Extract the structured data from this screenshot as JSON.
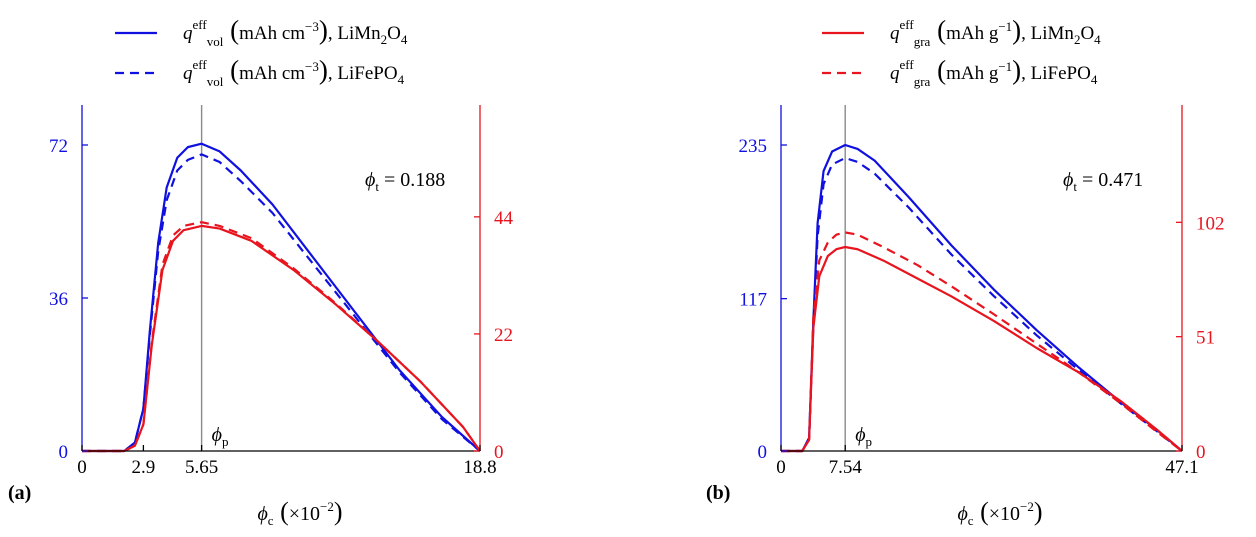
{
  "colors": {
    "blue": "#1010e0",
    "red": "#e8141e",
    "ref": "#8a8a8a",
    "axis": "#000000"
  },
  "chart_data": [
    {
      "type": "line",
      "panel_label": "(a)",
      "annotation": {
        "symbol": "ϕ",
        "sub": "t",
        "rest": " = 0.188"
      },
      "peak_label": {
        "symbol": "ϕ",
        "sub": "p"
      },
      "xlabel": {
        "symbol": "ϕ",
        "sub": "c",
        "unit": "×10",
        "exp": "−2"
      },
      "xlim": [
        0,
        18.8
      ],
      "xticks": [
        "0",
        "2.9",
        "5.65",
        "18.8"
      ],
      "xtick_values": [
        0,
        2.9,
        5.65,
        18.8
      ],
      "vline_x": 5.65,
      "y_left": {
        "lim": [
          0,
          72
        ],
        "ticks": [
          "0",
          "36",
          "72"
        ],
        "tick_values": [
          0,
          36,
          72
        ]
      },
      "y_right": {
        "lim": [
          0,
          57.5
        ],
        "ticks": [
          "0",
          "22",
          "44"
        ],
        "tick_values": [
          0,
          22,
          44
        ]
      },
      "legend": [
        {
          "symbol": "q",
          "sup": "eff",
          "sub": "vol",
          "unit": "mAh cm",
          "exp": "−3",
          "material": "LiMn",
          "m2": "2",
          "m3": "O",
          "m4": "4",
          "style": "solid"
        },
        {
          "symbol": "q",
          "sup": "eff",
          "sub": "vol",
          "unit": "mAh cm",
          "exp": "−3",
          "material": "LiFePO",
          "m2": "",
          "m3": "",
          "m4": "4",
          "style": "dashed"
        }
      ],
      "series": [
        {
          "axis": "left",
          "color": "blue",
          "dash": false,
          "x": [
            0,
            2.0,
            2.5,
            2.9,
            3.2,
            3.6,
            4.0,
            4.5,
            5.0,
            5.65,
            6.5,
            7.5,
            9,
            11,
            13,
            15,
            17,
            18.8
          ],
          "y": [
            0,
            0,
            2,
            10,
            28,
            49,
            62,
            69,
            71.5,
            72.3,
            70.5,
            66,
            58,
            45,
            32,
            19,
            8,
            0
          ]
        },
        {
          "axis": "left",
          "color": "blue",
          "dash": true,
          "x": [
            0,
            2.0,
            2.5,
            2.9,
            3.2,
            3.6,
            4.0,
            4.5,
            5.0,
            5.65,
            6.5,
            7.5,
            9,
            11,
            13,
            15,
            17,
            18.8
          ],
          "y": [
            0,
            0,
            2,
            10,
            27,
            47,
            59,
            66,
            68.5,
            69.8,
            68,
            63.5,
            56,
            43.5,
            31,
            18.5,
            7.5,
            0
          ]
        },
        {
          "axis": "right",
          "color": "red",
          "dash": false,
          "x": [
            0,
            2.0,
            2.5,
            2.9,
            3.3,
            3.8,
            4.3,
            4.8,
            5.65,
            6.5,
            8,
            10,
            12,
            14,
            16,
            18,
            18.8
          ],
          "y": [
            0,
            0,
            1,
            5,
            20,
            34,
            39.5,
            41.5,
            42.3,
            41.8,
            39.5,
            34,
            27.5,
            20.5,
            13,
            4.5,
            0
          ]
        },
        {
          "axis": "right",
          "color": "red",
          "dash": true,
          "x": [
            0,
            2.0,
            2.5,
            2.9,
            3.3,
            3.8,
            4.3,
            4.8,
            5.65,
            6.5,
            8,
            10,
            12,
            14,
            16,
            18,
            18.8
          ],
          "y": [
            0,
            0,
            1,
            5,
            20.5,
            35,
            40.5,
            42.3,
            43,
            42.3,
            40,
            34.3,
            27.7,
            20.5,
            13,
            4.5,
            0
          ]
        }
      ]
    },
    {
      "type": "line",
      "panel_label": "(b)",
      "annotation": {
        "symbol": "ϕ",
        "sub": "t",
        "rest": " = 0.471"
      },
      "peak_label": {
        "symbol": "ϕ",
        "sub": "p"
      },
      "xlabel": {
        "symbol": "ϕ",
        "sub": "c",
        "unit": "×10",
        "exp": "−2"
      },
      "xlim": [
        0,
        47.1
      ],
      "xticks": [
        "0",
        "7.54",
        "47.1"
      ],
      "xtick_values": [
        0,
        7.54,
        47.1
      ],
      "vline_x": 7.54,
      "y_left": {
        "lim": [
          0,
          235
        ],
        "ticks": [
          "0",
          "117",
          "235"
        ],
        "tick_values": [
          0,
          117,
          235
        ]
      },
      "y_right": {
        "lim": [
          0,
          136.5
        ],
        "ticks": [
          "0",
          "51",
          "102"
        ],
        "tick_values": [
          0,
          51,
          102
        ]
      },
      "legend": [
        {
          "symbol": "q",
          "sup": "eff",
          "sub": "gra",
          "unit": "mAh g",
          "exp": "−1",
          "material": "LiMn",
          "m2": "2",
          "m3": "O",
          "m4": "4",
          "style": "solid"
        },
        {
          "symbol": "q",
          "sup": "eff",
          "sub": "gra",
          "unit": "mAh g",
          "exp": "−1",
          "material": "LiFePO",
          "m2": "",
          "m3": "",
          "m4": "4",
          "style": "dashed"
        }
      ],
      "series": [
        {
          "axis": "left",
          "color": "blue",
          "dash": false,
          "x": [
            0,
            2.5,
            3.3,
            3.8,
            4.3,
            5.0,
            6.0,
            7.54,
            9,
            11,
            15,
            20,
            25,
            30,
            35,
            40,
            44,
            47.1
          ],
          "y": [
            0,
            0,
            10,
            100,
            175,
            215,
            230,
            235,
            232,
            223,
            195,
            158,
            124,
            93,
            64,
            37,
            17,
            0
          ]
        },
        {
          "axis": "left",
          "color": "blue",
          "dash": true,
          "x": [
            0,
            2.5,
            3.3,
            3.8,
            4.3,
            5.0,
            6.0,
            7.54,
            9,
            11,
            15,
            20,
            25,
            30,
            35,
            40,
            44,
            47.1
          ],
          "y": [
            0,
            0,
            10,
            95,
            165,
            205,
            220,
            225,
            222,
            213,
            187,
            151,
            119,
            89,
            62,
            36,
            16,
            0
          ]
        },
        {
          "axis": "right",
          "color": "red",
          "dash": false,
          "x": [
            0,
            2.5,
            3.3,
            3.8,
            4.5,
            5.5,
            6.5,
            7.54,
            9,
            12,
            16,
            20,
            25,
            30,
            35,
            40,
            44,
            47.1
          ],
          "y": [
            0,
            0,
            5,
            55,
            78,
            87,
            90,
            91,
            90,
            85,
            77,
            69,
            58,
            46,
            35,
            22,
            10,
            0
          ]
        },
        {
          "axis": "right",
          "color": "red",
          "dash": true,
          "x": [
            0,
            2.5,
            3.3,
            3.8,
            4.5,
            5.5,
            6.5,
            7.54,
            9,
            12,
            16,
            20,
            25,
            30,
            35,
            40,
            44,
            47.1
          ],
          "y": [
            0,
            0,
            5,
            60,
            85,
            93,
            96.5,
            97.5,
            96.5,
            91,
            83,
            73.5,
            61,
            48,
            35,
            21,
            9,
            0
          ]
        }
      ]
    }
  ]
}
